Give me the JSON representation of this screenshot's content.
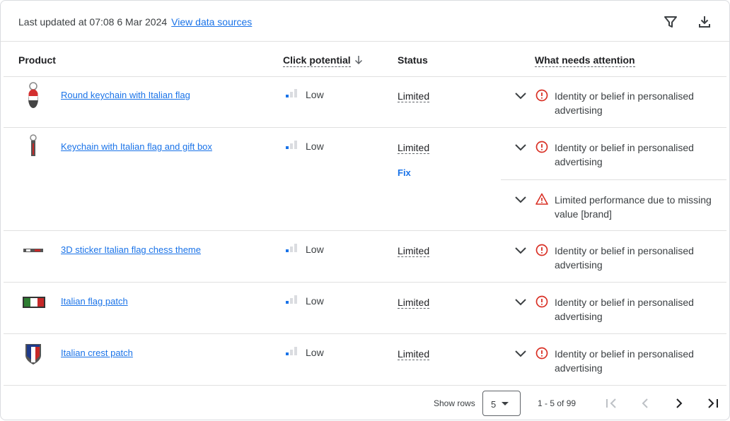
{
  "header": {
    "updated": "Last updated at 07:08 6 Mar 2024",
    "view_sources": "View data sources",
    "filter_icon": "filter-icon",
    "download_icon": "download-icon"
  },
  "columns": {
    "product": "Product",
    "click_potential": "Click potential",
    "sort_icon": "arrow-down-icon",
    "status": "Status",
    "attention": "What needs attention"
  },
  "colors": {
    "link": "#1a73e8",
    "error": "#d93025",
    "bar_active": "#1a73e8",
    "bar_inactive": "#dadce0"
  },
  "rows": [
    {
      "name": "Round keychain with Italian flag",
      "click_potential": "Low",
      "status": "Limited",
      "issues": [
        {
          "type": "error",
          "text": "Identity or belief in personalised advertising"
        }
      ]
    },
    {
      "name": "Keychain with Italian flag and gift box",
      "click_potential": "Low",
      "status": "Limited",
      "fix": "Fix",
      "issues": [
        {
          "type": "error",
          "text": "Identity or belief in personalised advertising"
        },
        {
          "type": "warning",
          "text": "Limited performance due to missing value [brand]"
        }
      ]
    },
    {
      "name": "3D sticker Italian flag chess theme",
      "click_potential": "Low",
      "status": "Limited",
      "issues": [
        {
          "type": "error",
          "text": "Identity or belief in personalised advertising"
        }
      ]
    },
    {
      "name": "Italian flag patch",
      "click_potential": "Low",
      "status": "Limited",
      "issues": [
        {
          "type": "error",
          "text": "Identity or belief in personalised advertising"
        }
      ]
    },
    {
      "name": "Italian crest patch",
      "click_potential": "Low",
      "status": "Limited",
      "issues": [
        {
          "type": "error",
          "text": "Identity or belief in personalised advertising"
        }
      ]
    }
  ],
  "footer": {
    "show_rows": "Show rows",
    "rows_value": "5",
    "range": "1 - 5 of 99"
  }
}
